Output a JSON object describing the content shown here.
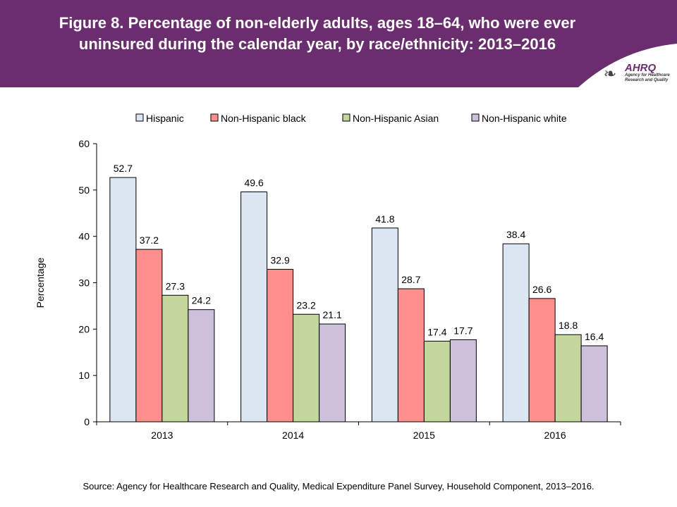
{
  "header": {
    "title": "Figure 8. Percentage of non-elderly adults, ages 18–64, who were ever uninsured during the calendar year, by race/ethnicity: 2013–2016",
    "brand_color": "#6a2d6e"
  },
  "logo": {
    "name": "AHRQ",
    "subtitle": "Agency for Healthcare Research and Quality"
  },
  "source": "Source: Agency for Healthcare Research and Quality, Medical Expenditure Panel Survey, Household Component, 2013–2016.",
  "chart_data": {
    "type": "bar",
    "categories": [
      "2013",
      "2014",
      "2015",
      "2016"
    ],
    "series": [
      {
        "name": "Hispanic",
        "values": [
          52.7,
          49.6,
          41.8,
          38.4
        ],
        "color": "#dce6f2"
      },
      {
        "name": "Non-Hispanic black",
        "values": [
          37.2,
          32.9,
          28.7,
          26.6
        ],
        "color": "#ff8f8c"
      },
      {
        "name": "Non-Hispanic Asian",
        "values": [
          27.3,
          23.2,
          17.4,
          18.8
        ],
        "color": "#c3d69b"
      },
      {
        "name": "Non-Hispanic white",
        "values": [
          24.2,
          21.1,
          17.7,
          16.4
        ],
        "color": "#ccc0da"
      }
    ],
    "xlabel": "",
    "ylabel": "Percentage",
    "ylim": [
      0,
      60
    ],
    "yticks": [
      0,
      10,
      20,
      30,
      40,
      50,
      60
    ],
    "grid": false,
    "legend": "top"
  }
}
